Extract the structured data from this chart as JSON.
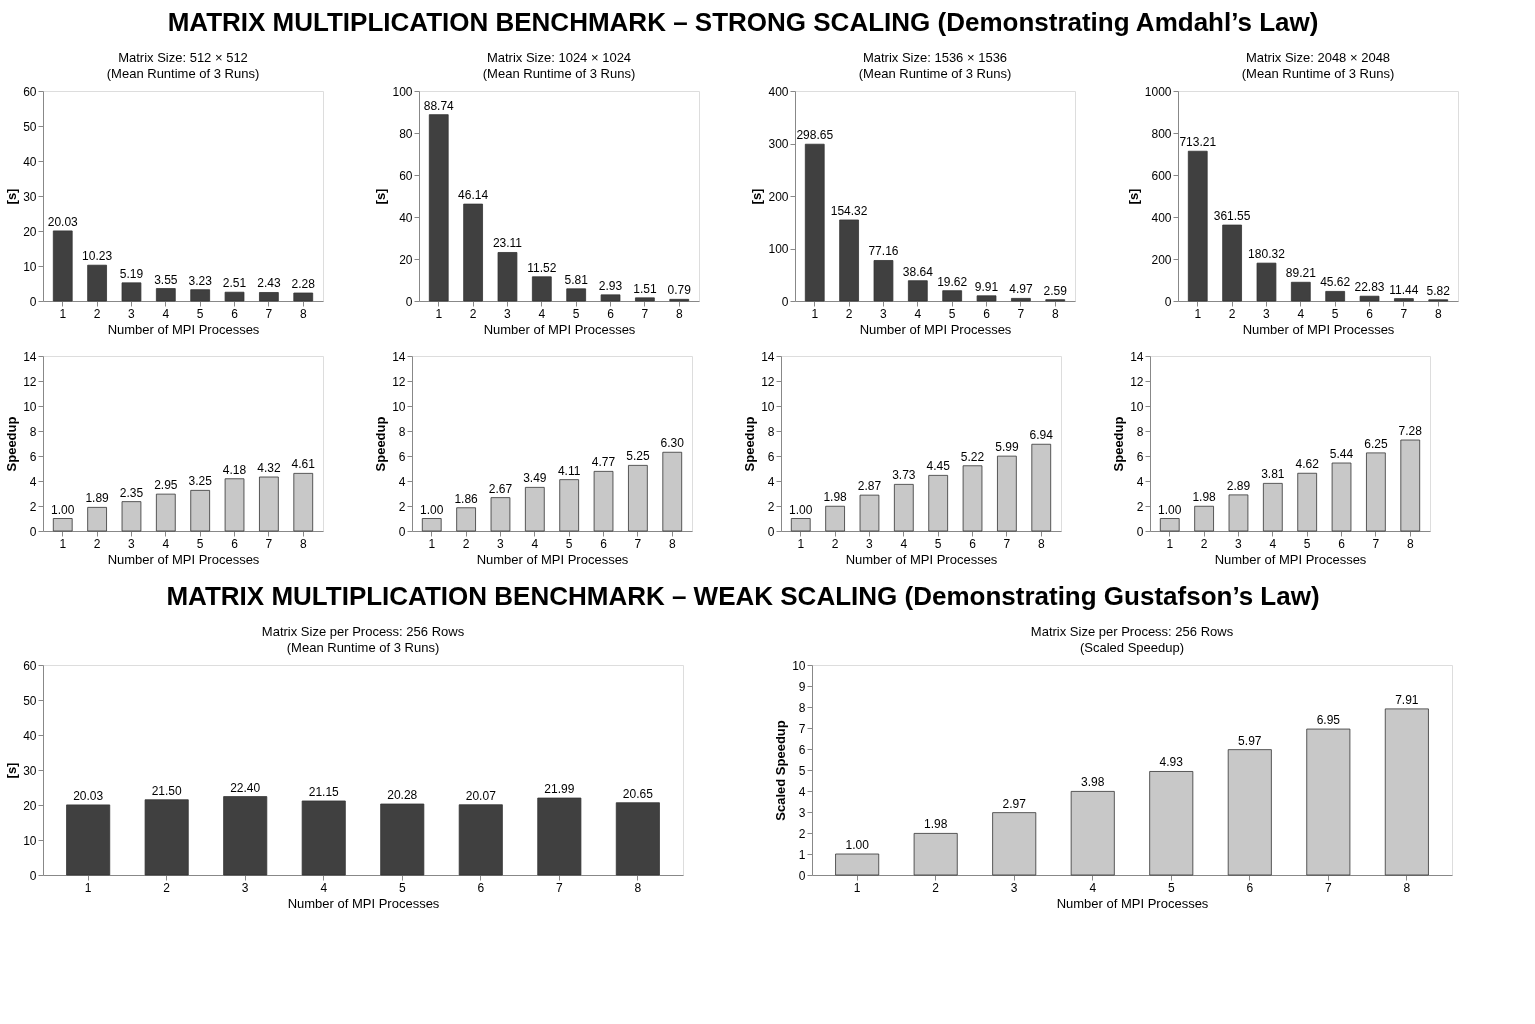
{
  "chart_data": [
    {
      "type": "other",
      "title": "MATRIX MULTIPLICATION BENCHMARK – STRONG SCALING (Demonstrating Amdahl’s Law)"
    },
    {
      "type": "bar",
      "title": "Matrix Size:  512 × 512",
      "subtitle": "(Mean Runtime of 3 Runs)",
      "xlabel": "Number of MPI Processes",
      "ylabel": "[s]",
      "categories": [
        "1",
        "2",
        "3",
        "4",
        "5",
        "6",
        "7",
        "8"
      ],
      "values": [
        20.03,
        10.23,
        5.19,
        3.55,
        3.23,
        2.51,
        2.43,
        2.28
      ],
      "color": "#404040",
      "ylim": [
        0,
        60
      ],
      "yticks": [
        0,
        10,
        20,
        30,
        40,
        50,
        60
      ],
      "data_labels": true,
      "grid": false
    },
    {
      "type": "bar",
      "title": "Matrix Size:  1024 × 1024",
      "subtitle": "(Mean Runtime of 3 Runs)",
      "xlabel": "Number of MPI Processes",
      "ylabel": "[s]",
      "categories": [
        "1",
        "2",
        "3",
        "4",
        "5",
        "6",
        "7",
        "8"
      ],
      "values": [
        88.74,
        46.14,
        23.11,
        11.52,
        5.81,
        2.93,
        1.51,
        0.79
      ],
      "color": "#404040",
      "ylim": [
        0,
        100
      ],
      "yticks": [
        0,
        20,
        40,
        60,
        80,
        100
      ],
      "data_labels": true,
      "grid": false
    },
    {
      "type": "bar",
      "title": "Matrix Size:  1536 × 1536",
      "subtitle": "(Mean Runtime of 3 Runs)",
      "xlabel": "Number of MPI Processes",
      "ylabel": "[s]",
      "categories": [
        "1",
        "2",
        "3",
        "4",
        "5",
        "6",
        "7",
        "8"
      ],
      "values": [
        298.65,
        154.32,
        77.16,
        38.64,
        19.62,
        9.91,
        4.97,
        2.59
      ],
      "color": "#404040",
      "ylim": [
        0,
        400
      ],
      "yticks": [
        0,
        100,
        200,
        300,
        400
      ],
      "data_labels": true,
      "grid": false
    },
    {
      "type": "bar",
      "title": "Matrix Size:  2048 × 2048",
      "subtitle": "(Mean Runtime of 3 Runs)",
      "xlabel": "Number of MPI Processes",
      "ylabel": "[s]",
      "categories": [
        "1",
        "2",
        "3",
        "4",
        "5",
        "6",
        "7",
        "8"
      ],
      "values": [
        713.21,
        361.55,
        180.32,
        89.21,
        45.62,
        22.83,
        11.44,
        5.82
      ],
      "color": "#404040",
      "ylim": [
        0,
        1000
      ],
      "yticks": [
        0,
        200,
        400,
        600,
        800,
        1000
      ],
      "data_labels": true,
      "grid": false
    },
    {
      "type": "bar",
      "xlabel": "Number of MPI Processes",
      "ylabel": "Speedup",
      "categories": [
        "1",
        "2",
        "3",
        "4",
        "5",
        "6",
        "7",
        "8"
      ],
      "values": [
        1.0,
        1.89,
        2.35,
        2.95,
        3.25,
        4.18,
        4.32,
        4.61
      ],
      "value_labels": [
        "1.00",
        "1.89",
        "2.35",
        "2.95",
        "3.25",
        "4.18",
        "4.32",
        "4.61"
      ],
      "color": "#c8c8c8",
      "ylim": [
        0,
        14
      ],
      "yticks": [
        0,
        2,
        4,
        6,
        8,
        10,
        12,
        14
      ],
      "grid": false
    },
    {
      "type": "bar",
      "xlabel": "Number of MPI Processes",
      "ylabel": "Speedup",
      "categories": [
        "1",
        "2",
        "3",
        "4",
        "5",
        "6",
        "7",
        "8"
      ],
      "values": [
        1.0,
        1.86,
        2.67,
        3.49,
        4.11,
        4.77,
        5.25,
        6.3
      ],
      "value_labels": [
        "1.00",
        "1.86",
        "2.67",
        "3.49",
        "4.11",
        "4.77",
        "5.25",
        "6.30"
      ],
      "color": "#c8c8c8",
      "ylim": [
        0,
        14
      ],
      "yticks": [
        0,
        2,
        4,
        6,
        8,
        10,
        12,
        14
      ],
      "grid": false
    },
    {
      "type": "bar",
      "xlabel": "Number of MPI Processes",
      "ylabel": "Speedup",
      "categories": [
        "1",
        "2",
        "3",
        "4",
        "5",
        "6",
        "7",
        "8"
      ],
      "values": [
        1.0,
        1.98,
        2.87,
        3.73,
        4.45,
        5.22,
        5.99,
        6.94
      ],
      "value_labels": [
        "1.00",
        "1.98",
        "2.87",
        "3.73",
        "4.45",
        "5.22",
        "5.99",
        "6.94"
      ],
      "color": "#c8c8c8",
      "ylim": [
        0,
        14
      ],
      "yticks": [
        0,
        2,
        4,
        6,
        8,
        10,
        12,
        14
      ],
      "grid": false
    },
    {
      "type": "bar",
      "xlabel": "Number of MPI Processes",
      "ylabel": "Speedup",
      "categories": [
        "1",
        "2",
        "3",
        "4",
        "5",
        "6",
        "7",
        "8"
      ],
      "values": [
        1.0,
        1.98,
        2.89,
        3.81,
        4.62,
        5.44,
        6.25,
        7.28
      ],
      "value_labels": [
        "1.00",
        "1.98",
        "2.89",
        "3.81",
        "4.62",
        "5.44",
        "6.25",
        "7.28"
      ],
      "color": "#c8c8c8",
      "ylim": [
        0,
        14
      ],
      "yticks": [
        0,
        2,
        4,
        6,
        8,
        10,
        12,
        14
      ],
      "grid": false
    },
    {
      "type": "other",
      "title": "MATRIX MULTIPLICATION BENCHMARK – WEAK SCALING (Demonstrating Gustafson’s Law)"
    },
    {
      "type": "bar",
      "title": "Matrix Size per Process:  256 Rows",
      "subtitle": "(Mean Runtime of 3 Runs)",
      "xlabel": "Number of MPI Processes",
      "ylabel": "[s]",
      "categories": [
        "1",
        "2",
        "3",
        "4",
        "5",
        "6",
        "7",
        "8"
      ],
      "values": [
        20.03,
        21.5,
        22.4,
        21.15,
        20.28,
        20.07,
        21.99,
        20.65
      ],
      "value_labels": [
        "20.03",
        "21.50",
        "22.40",
        "21.15",
        "20.28",
        "20.07",
        "21.99",
        "20.65"
      ],
      "color": "#404040",
      "ylim": [
        0,
        60
      ],
      "yticks": [
        0,
        10,
        20,
        30,
        40,
        50,
        60
      ],
      "grid": false
    },
    {
      "type": "bar",
      "title": "Matrix Size per Process:  256 Rows",
      "subtitle": "(Scaled Speedup)",
      "xlabel": "Number of MPI Processes",
      "ylabel": "Scaled Speedup",
      "categories": [
        "1",
        "2",
        "3",
        "4",
        "5",
        "6",
        "7",
        "8"
      ],
      "values": [
        1.0,
        1.98,
        2.97,
        3.98,
        4.93,
        5.97,
        6.95,
        7.91
      ],
      "value_labels": [
        "1.00",
        "1.98",
        "2.97",
        "3.98",
        "4.93",
        "5.97",
        "6.95",
        "7.91"
      ],
      "color": "#c8c8c8",
      "ylim": [
        0,
        10
      ],
      "yticks": [
        0,
        1,
        2,
        3,
        4,
        5,
        6,
        7,
        8,
        9,
        10
      ],
      "grid": false
    }
  ]
}
